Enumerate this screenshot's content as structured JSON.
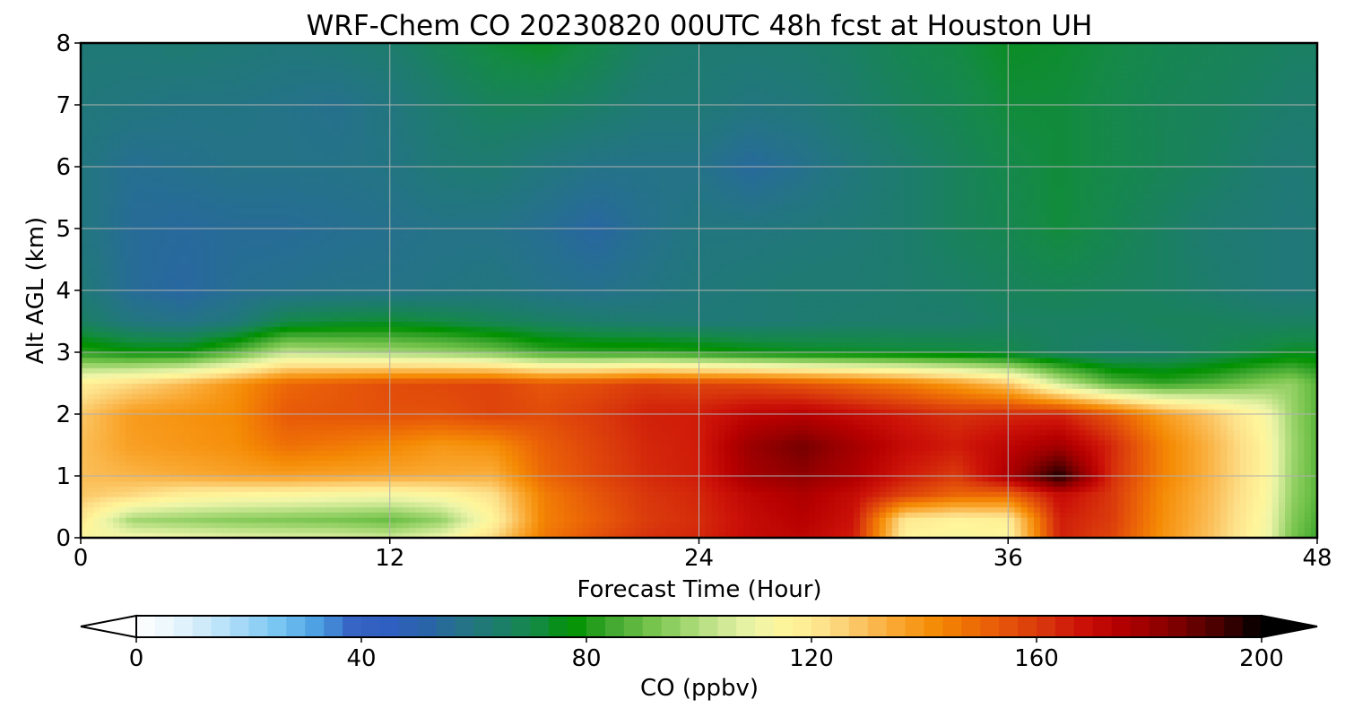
{
  "chart_data": {
    "type": "heatmap",
    "title": "WRF-Chem CO  20230820 00UTC 48h fcst at Houston UH",
    "xlabel": "Forecast Time (Hour)",
    "ylabel": "Alt AGL (km)",
    "xlim": [
      0,
      48
    ],
    "ylim": [
      0,
      8
    ],
    "x_ticks": [
      "0",
      "12",
      "24",
      "36",
      "48"
    ],
    "y_ticks": [
      "0",
      "1",
      "2",
      "3",
      "4",
      "5",
      "6",
      "7",
      "8"
    ],
    "grid": true,
    "colorbar": {
      "label": "CO  (ppbv)",
      "range": [
        0,
        200
      ],
      "ticks": [
        "0",
        "40",
        "80",
        "120",
        "160",
        "200"
      ],
      "extend": "both",
      "colors": [
        "#ffffff",
        "#eaf6fc",
        "#c9e9fa",
        "#9fd6f7",
        "#74c4f2",
        "#4a9ee0",
        "#3562c4",
        "#2f5fc0",
        "#2a64a8",
        "#247387",
        "#1c7d6a",
        "#148a45",
        "#009100",
        "#3ba52e",
        "#6cbf45",
        "#9ad36a",
        "#c8e690",
        "#eef5a8",
        "#fff59a",
        "#fde08a",
        "#fbc25e",
        "#f9a52c",
        "#f58b05",
        "#ee6e06",
        "#e4520a",
        "#d8350c",
        "#cc1208",
        "#b60000",
        "#980000",
        "#6e0000",
        "#3e0000",
        "#000000"
      ]
    },
    "x_hours": [
      0,
      2,
      4,
      6,
      8,
      10,
      12,
      14,
      16,
      18,
      20,
      22,
      24,
      26,
      28,
      30,
      32,
      34,
      36,
      38,
      40,
      42,
      44,
      46,
      47,
      48
    ],
    "z_levels_km": [
      0,
      0.3,
      0.7,
      1,
      1.5,
      2,
      2.5,
      3,
      3.5,
      4,
      5,
      6,
      7,
      8
    ],
    "co_ppbv": [
      [
        114,
        112,
        110,
        108,
        107,
        106,
        104,
        110,
        124,
        146,
        155,
        162,
        164,
        170,
        172,
        166,
        116,
        114,
        115,
        165,
        158,
        140,
        128,
        112,
        92,
        84
      ],
      [
        120,
        98,
        96,
        94,
        93,
        92,
        90,
        96,
        116,
        144,
        152,
        160,
        163,
        170,
        174,
        168,
        120,
        117,
        118,
        166,
        160,
        141,
        129,
        113,
        94,
        86
      ],
      [
        128,
        124,
        118,
        116,
        115,
        113,
        112,
        115,
        122,
        145,
        154,
        161,
        164,
        172,
        176,
        170,
        158,
        150,
        150,
        170,
        161,
        142,
        130,
        115,
        96,
        88
      ],
      [
        130,
        132,
        134,
        136,
        137,
        136,
        135,
        134,
        133,
        150,
        157,
        163,
        166,
        178,
        182,
        176,
        166,
        160,
        176,
        198,
        163,
        144,
        131,
        116,
        97,
        88
      ],
      [
        130,
        137,
        139,
        141,
        148,
        146,
        143,
        139,
        141,
        152,
        158,
        164,
        166,
        180,
        186,
        178,
        170,
        166,
        172,
        178,
        164,
        144,
        131,
        116,
        98,
        88
      ],
      [
        128,
        138,
        140,
        142,
        153,
        154,
        155,
        155,
        158,
        156,
        160,
        165,
        166,
        172,
        174,
        170,
        166,
        162,
        164,
        165,
        154,
        138,
        127,
        113,
        97,
        88
      ],
      [
        118,
        124,
        131,
        140,
        150,
        153,
        156,
        157,
        158,
        154,
        156,
        160,
        158,
        157,
        154,
        150,
        145,
        138,
        128,
        104,
        88,
        83,
        87,
        94,
        96,
        88
      ],
      [
        82,
        78,
        78,
        88,
        102,
        100,
        98,
        96,
        92,
        84,
        82,
        82,
        80,
        77,
        75,
        74,
        73,
        72,
        70,
        66,
        64,
        65,
        68,
        72,
        74,
        74
      ],
      [
        66,
        60,
        58,
        61,
        70,
        72,
        73,
        71,
        68,
        66,
        64,
        63,
        62,
        62,
        63,
        64,
        64,
        64,
        66,
        66,
        66,
        67,
        67,
        66,
        66,
        66
      ],
      [
        62,
        55,
        53,
        56,
        57,
        58,
        58,
        59,
        60,
        58,
        57,
        59,
        61,
        62,
        63,
        63,
        64,
        65,
        67,
        68,
        67,
        66,
        64,
        62,
        61,
        62
      ],
      [
        60,
        55,
        54,
        55,
        55,
        56,
        57,
        58,
        58,
        56,
        53,
        57,
        60,
        60,
        61,
        62,
        64,
        67,
        69,
        72,
        69,
        66,
        63,
        62,
        61,
        62
      ],
      [
        60,
        56,
        57,
        58,
        58,
        58,
        59,
        62,
        63,
        60,
        58,
        58,
        58,
        54,
        57,
        61,
        64,
        67,
        70,
        72,
        70,
        68,
        66,
        63,
        62,
        63
      ],
      [
        61,
        60,
        59,
        59,
        58,
        57,
        60,
        64,
        67,
        67,
        65,
        62,
        62,
        60,
        61,
        64,
        67,
        69,
        72,
        72,
        70,
        68,
        67,
        65,
        64,
        64
      ],
      [
        62,
        62,
        63,
        62,
        61,
        62,
        64,
        68,
        72,
        74,
        70,
        65,
        63,
        63,
        64,
        66,
        69,
        71,
        74,
        73,
        71,
        69,
        68,
        67,
        66,
        66
      ]
    ]
  }
}
